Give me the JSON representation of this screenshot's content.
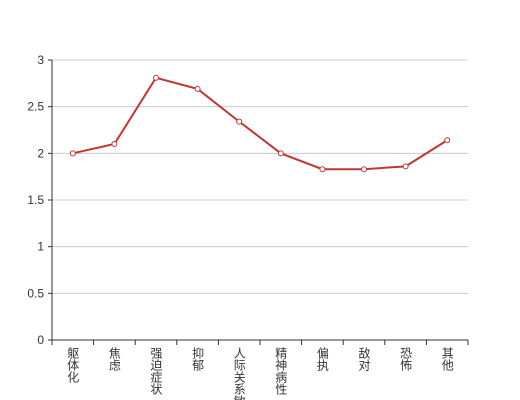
{
  "chart_data": {
    "type": "line",
    "categories": [
      "躯体化",
      "焦虑",
      "强迫症状",
      "抑郁",
      "人际关系敏感",
      "精神病性",
      "偏执",
      "敌对",
      "恐怖",
      "其他"
    ],
    "values": [
      2.0,
      2.1,
      2.81,
      2.69,
      2.34,
      2.0,
      1.83,
      1.83,
      1.86,
      2.14
    ],
    "color": "#c23531",
    "ylim": [
      0,
      3
    ],
    "yticks": [
      0,
      0.5,
      1,
      1.5,
      2,
      2.5,
      3
    ],
    "grid": true
  }
}
